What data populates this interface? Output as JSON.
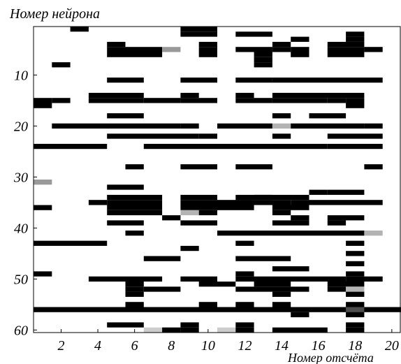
{
  "chart_data": {
    "type": "heatmap",
    "title": "",
    "xlabel": "Номер отсчёта",
    "ylabel": "Номер нейрона",
    "xlim": [
      0.5,
      20.5
    ],
    "ylim": [
      0.5,
      60.5
    ],
    "xticks": [
      2,
      4,
      6,
      8,
      10,
      12,
      14,
      16,
      18,
      20
    ],
    "yticks": [
      10,
      20,
      30,
      40,
      50,
      60
    ],
    "value_range": [
      0,
      1
    ],
    "colormap": "white = 0, black = 1, grey = intermediate",
    "cells": [
      {
        "n": 1,
        "x": [
          [
            3,
            3,
            1
          ],
          [
            9,
            10,
            1
          ]
        ]
      },
      {
        "n": 2,
        "x": [
          [
            9,
            10,
            1
          ],
          [
            12,
            13,
            1
          ],
          [
            18,
            18,
            1
          ]
        ]
      },
      {
        "n": 3,
        "x": [
          [
            15,
            15,
            1
          ],
          [
            18,
            18,
            1
          ]
        ]
      },
      {
        "n": 4,
        "x": [
          [
            5,
            5,
            1
          ],
          [
            10,
            10,
            1
          ],
          [
            14,
            14,
            1
          ],
          [
            17,
            18,
            1
          ]
        ]
      },
      {
        "n": 5,
        "x": [
          [
            5,
            7,
            1
          ],
          [
            8,
            8,
            0.4
          ],
          [
            10,
            10,
            1
          ],
          [
            12,
            13,
            1
          ],
          [
            14,
            14,
            1
          ],
          [
            15,
            15,
            1
          ],
          [
            17,
            18,
            1
          ],
          [
            19,
            19,
            1
          ]
        ]
      },
      {
        "n": 6,
        "x": [
          [
            5,
            7,
            1
          ],
          [
            10,
            10,
            1
          ],
          [
            13,
            13,
            1
          ],
          [
            15,
            15,
            1
          ],
          [
            17,
            18,
            1
          ]
        ]
      },
      {
        "n": 7,
        "x": [
          [
            13,
            13,
            1
          ]
        ]
      },
      {
        "n": 8,
        "x": [
          [
            2,
            2,
            1
          ],
          [
            13,
            13,
            1
          ]
        ]
      },
      {
        "n": 11,
        "x": [
          [
            5,
            6,
            1
          ],
          [
            9,
            10,
            1
          ],
          [
            12,
            13,
            1
          ],
          [
            14,
            19,
            1
          ]
        ]
      },
      {
        "n": 14,
        "x": [
          [
            4,
            6,
            1
          ],
          [
            9,
            9,
            1
          ],
          [
            12,
            12,
            1
          ],
          [
            14,
            18,
            1
          ]
        ]
      },
      {
        "n": 15,
        "x": [
          [
            1,
            1,
            1
          ],
          [
            2,
            2,
            1
          ],
          [
            4,
            6,
            1
          ],
          [
            7,
            8,
            1
          ],
          [
            9,
            10,
            1
          ],
          [
            12,
            13,
            1
          ],
          [
            14,
            16,
            1
          ],
          [
            17,
            17,
            1
          ],
          [
            18,
            18,
            1
          ]
        ]
      },
      {
        "n": 16,
        "x": [
          [
            1,
            1,
            1
          ],
          [
            18,
            18,
            1
          ]
        ]
      },
      {
        "n": 18,
        "x": [
          [
            5,
            6,
            1
          ],
          [
            14,
            14,
            1
          ],
          [
            16,
            17,
            1
          ]
        ]
      },
      {
        "n": 20,
        "x": [
          [
            2,
            5,
            1
          ],
          [
            6,
            8,
            1
          ],
          [
            9,
            9,
            1
          ],
          [
            11,
            13,
            1
          ],
          [
            14,
            14,
            0.3
          ],
          [
            15,
            18,
            1
          ],
          [
            19,
            19,
            1
          ]
        ]
      },
      {
        "n": 22,
        "x": [
          [
            5,
            9,
            1
          ],
          [
            10,
            10,
            1
          ],
          [
            14,
            14,
            1
          ],
          [
            17,
            19,
            1
          ]
        ]
      },
      {
        "n": 24,
        "x": [
          [
            1,
            4,
            1
          ],
          [
            7,
            16,
            1
          ],
          [
            17,
            19,
            1
          ]
        ]
      },
      {
        "n": 28,
        "x": [
          [
            6,
            6,
            1
          ],
          [
            9,
            10,
            1
          ],
          [
            12,
            13,
            1
          ],
          [
            19,
            19,
            1
          ]
        ]
      },
      {
        "n": 31,
        "x": [
          [
            1,
            1,
            0.4
          ]
        ]
      },
      {
        "n": 32,
        "x": [
          [
            5,
            6,
            1
          ]
        ]
      },
      {
        "n": 33,
        "x": [
          [
            16,
            16,
            1
          ],
          [
            17,
            18,
            1
          ]
        ]
      },
      {
        "n": 34,
        "x": [
          [
            5,
            5,
            1
          ],
          [
            6,
            7,
            1
          ],
          [
            9,
            10,
            1
          ],
          [
            12,
            13,
            1
          ],
          [
            13,
            15,
            1
          ]
        ]
      },
      {
        "n": 35,
        "x": [
          [
            4,
            4,
            1
          ],
          [
            5,
            7,
            1
          ],
          [
            9,
            12,
            1
          ],
          [
            12,
            14,
            1
          ],
          [
            15,
            15,
            1
          ],
          [
            16,
            19,
            1
          ]
        ]
      },
      {
        "n": 36,
        "x": [
          [
            1,
            1,
            1
          ],
          [
            5,
            7,
            1
          ],
          [
            9,
            12,
            1
          ],
          [
            14,
            15,
            1
          ]
        ]
      },
      {
        "n": 37,
        "x": [
          [
            5,
            5,
            1
          ],
          [
            6,
            7,
            1
          ],
          [
            9,
            9,
            0.3
          ],
          [
            10,
            10,
            1
          ],
          [
            14,
            14,
            1
          ]
        ]
      },
      {
        "n": 38,
        "x": [
          [
            8,
            8,
            1
          ],
          [
            15,
            15,
            1
          ],
          [
            17,
            18,
            1
          ]
        ]
      },
      {
        "n": 39,
        "x": [
          [
            5,
            6,
            1
          ],
          [
            9,
            10,
            1
          ],
          [
            14,
            15,
            1
          ],
          [
            17,
            17,
            1
          ]
        ]
      },
      {
        "n": 41,
        "x": [
          [
            6,
            6,
            1
          ],
          [
            11,
            18,
            1
          ],
          [
            19,
            19,
            0.3
          ]
        ]
      },
      {
        "n": 43,
        "x": [
          [
            1,
            4,
            1
          ],
          [
            12,
            12,
            1
          ],
          [
            18,
            18,
            1
          ]
        ]
      },
      {
        "n": 44,
        "x": [
          [
            9,
            9,
            1
          ]
        ]
      },
      {
        "n": 45,
        "x": [
          [
            18,
            18,
            1
          ]
        ]
      },
      {
        "n": 46,
        "x": [
          [
            7,
            8,
            1
          ],
          [
            12,
            14,
            1
          ]
        ]
      },
      {
        "n": 47,
        "x": [
          [
            18,
            18,
            1
          ]
        ]
      },
      {
        "n": 48,
        "x": [
          [
            14,
            15,
            1
          ]
        ]
      },
      {
        "n": 49,
        "x": [
          [
            1,
            1,
            1
          ],
          [
            12,
            12,
            1
          ],
          [
            18,
            18,
            1
          ]
        ]
      },
      {
        "n": 50,
        "x": [
          [
            4,
            7,
            1
          ],
          [
            9,
            10,
            1
          ],
          [
            12,
            15,
            1
          ],
          [
            16,
            17,
            1
          ],
          [
            18,
            19,
            1
          ]
        ]
      },
      {
        "n": 51,
        "x": [
          [
            6,
            6,
            1
          ],
          [
            10,
            11,
            1
          ],
          [
            13,
            14,
            1
          ],
          [
            17,
            18,
            1
          ]
        ]
      },
      {
        "n": 52,
        "x": [
          [
            6,
            6,
            1
          ],
          [
            7,
            8,
            1
          ],
          [
            12,
            15,
            1
          ],
          [
            17,
            17,
            1
          ],
          [
            18,
            18,
            0.3
          ]
        ]
      },
      {
        "n": 53,
        "x": [
          [
            6,
            6,
            1
          ],
          [
            14,
            14,
            1
          ],
          [
            18,
            18,
            1
          ]
        ]
      },
      {
        "n": 55,
        "x": [
          [
            6,
            6,
            1
          ],
          [
            10,
            10,
            1
          ],
          [
            12,
            12,
            1
          ],
          [
            14,
            14,
            1
          ],
          [
            18,
            18,
            1
          ]
        ]
      },
      {
        "n": 56,
        "x": [
          [
            1,
            20,
            1
          ],
          [
            18,
            18,
            0.7
          ]
        ]
      },
      {
        "n": 57,
        "x": [
          [
            15,
            15,
            1
          ],
          [
            18,
            18,
            1
          ]
        ]
      },
      {
        "n": 59,
        "x": [
          [
            5,
            6,
            1
          ],
          [
            9,
            9,
            1
          ],
          [
            12,
            12,
            1
          ],
          [
            18,
            18,
            1
          ]
        ]
      },
      {
        "n": 60,
        "x": [
          [
            7,
            7,
            0.2
          ],
          [
            8,
            8,
            1
          ],
          [
            9,
            9,
            1
          ],
          [
            11,
            11,
            0.2
          ],
          [
            12,
            12,
            1
          ],
          [
            14,
            16,
            1
          ],
          [
            18,
            18,
            1
          ]
        ]
      }
    ]
  }
}
